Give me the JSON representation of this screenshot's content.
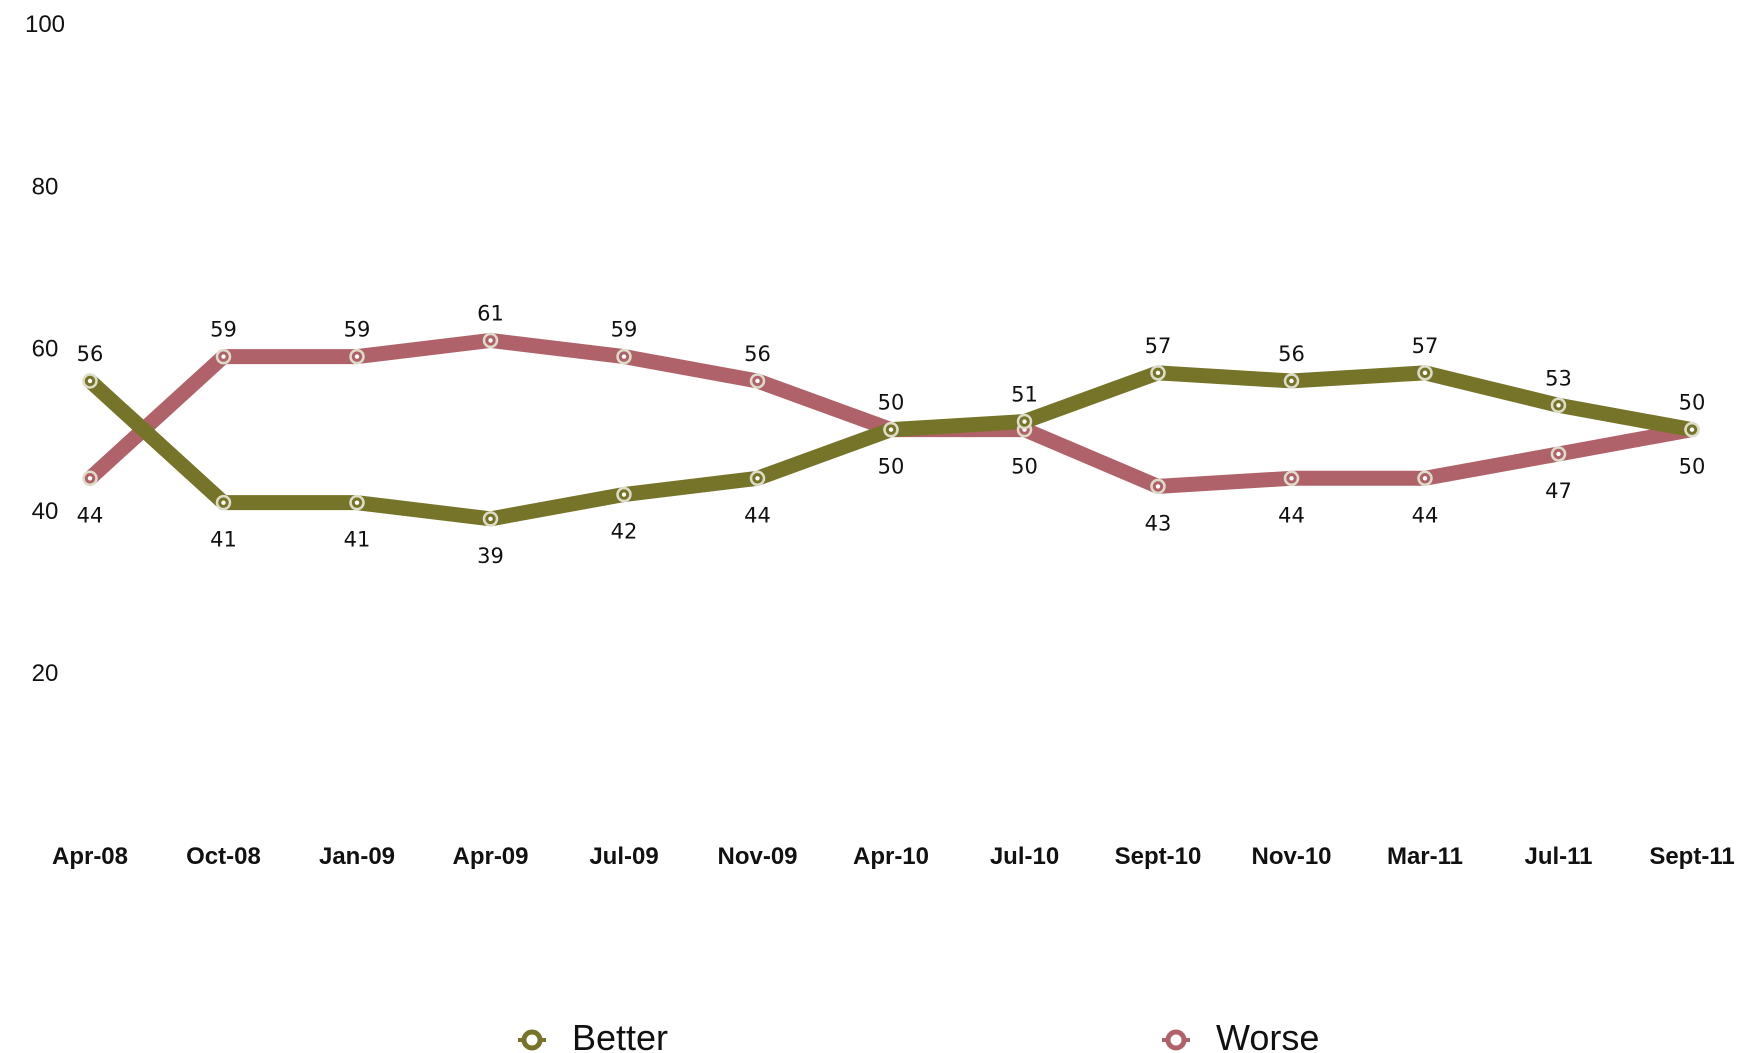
{
  "chart_data": {
    "type": "line",
    "title": "",
    "xlabel": "",
    "ylabel": "",
    "ylim": [
      0,
      100
    ],
    "yticks": [
      "20",
      "40",
      "60",
      "80",
      "100"
    ],
    "categories": [
      "Apr-08",
      "Oct-08",
      "Jan-09",
      "Apr-09",
      "Jul-09",
      "Nov-09",
      "Apr-10",
      "Jul-10",
      "Sept-10",
      "Nov-10",
      "Mar-11",
      "Jul-11",
      "Sept-11"
    ],
    "series": [
      {
        "name": "Better",
        "color": "#767428",
        "values": [
          56,
          41,
          41,
          39,
          42,
          44,
          50,
          51,
          57,
          56,
          57,
          53,
          50
        ],
        "labels": [
          "56",
          "41",
          "41",
          "39",
          "42",
          "44",
          "50",
          "51",
          "57",
          "56",
          "57",
          "53",
          "50"
        ]
      },
      {
        "name": "Worse",
        "color": "#b0626a",
        "values": [
          44,
          59,
          59,
          61,
          59,
          56,
          50,
          50,
          43,
          44,
          44,
          47,
          50
        ],
        "labels": [
          "44",
          "59",
          "59",
          "61",
          "59",
          "56",
          "50",
          "50",
          "43",
          "44",
          "44",
          "47",
          "50"
        ]
      }
    ],
    "grid": false,
    "legend_position": "bottom"
  }
}
